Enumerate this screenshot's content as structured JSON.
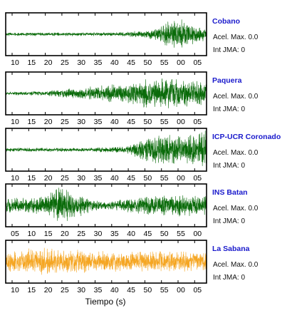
{
  "chart_data": {
    "type": "line",
    "xlabel": "Tiempo (s)",
    "panels": [
      {
        "station": "Cobano",
        "accel_label": "Acel. Max. 0.0",
        "jma_label": "Int JMA: 0",
        "color": "#0a6b0a",
        "ticks": [
          "10",
          "15",
          "20",
          "25",
          "30",
          "35",
          "40",
          "45",
          "50",
          "55",
          "00",
          "05"
        ],
        "amplitude_envelope": [
          [
            0,
            0.08
          ],
          [
            0.55,
            0.1
          ],
          [
            0.7,
            0.2
          ],
          [
            0.8,
            0.6
          ],
          [
            0.87,
            1.0
          ],
          [
            0.93,
            0.6
          ],
          [
            1,
            0.3
          ]
        ]
      },
      {
        "station": "Paquera",
        "accel_label": "Acel. Max. 0.0",
        "jma_label": "Int JMA: 0",
        "color": "#0a6b0a",
        "ticks": [
          "10",
          "15",
          "20",
          "25",
          "30",
          "35",
          "40",
          "45",
          "50",
          "55",
          "00",
          "05"
        ],
        "amplitude_envelope": [
          [
            0,
            0.08
          ],
          [
            0.2,
            0.12
          ],
          [
            0.35,
            0.3
          ],
          [
            0.5,
            0.45
          ],
          [
            0.65,
            0.6
          ],
          [
            0.75,
            0.95
          ],
          [
            0.85,
            0.8
          ],
          [
            1,
            0.55
          ]
        ]
      },
      {
        "station": "ICP-UCR Coronado",
        "accel_label": "Acel. Max. 0.0",
        "jma_label": "Int JMA: 0",
        "color": "#0a6b0a",
        "ticks": [
          "10",
          "15",
          "20",
          "25",
          "30",
          "35",
          "40",
          "45",
          "50",
          "55",
          "00",
          "05"
        ],
        "amplitude_envelope": [
          [
            0,
            0.1
          ],
          [
            0.4,
            0.1
          ],
          [
            0.6,
            0.2
          ],
          [
            0.68,
            0.55
          ],
          [
            0.8,
            0.85
          ],
          [
            0.88,
            0.7
          ],
          [
            0.95,
            0.95
          ],
          [
            1,
            1.0
          ]
        ]
      },
      {
        "station": "INS Batan",
        "accel_label": "Acel. Max. 0.0",
        "jma_label": "Int JMA: 0",
        "color": "#0a6b0a",
        "ticks": [
          "05",
          "10",
          "15",
          "20",
          "25",
          "30",
          "35",
          "40",
          "45",
          "50",
          "55",
          "00"
        ],
        "amplitude_envelope": [
          [
            0,
            0.35
          ],
          [
            0.2,
            0.5
          ],
          [
            0.27,
            1.0
          ],
          [
            0.32,
            0.8
          ],
          [
            0.4,
            0.45
          ],
          [
            0.5,
            0.2
          ],
          [
            0.6,
            0.35
          ],
          [
            0.8,
            0.6
          ],
          [
            1,
            0.5
          ]
        ]
      },
      {
        "station": "La Sabana",
        "accel_label": "Acel. Max. 0.0",
        "jma_label": "Int JMA: 0",
        "color": "#f5a623",
        "ticks": [
          "10",
          "15",
          "20",
          "25",
          "30",
          "35",
          "40",
          "45",
          "50",
          "55",
          "00",
          "05"
        ],
        "amplitude_envelope": [
          [
            0,
            0.5
          ],
          [
            0.15,
            0.75
          ],
          [
            0.3,
            0.65
          ],
          [
            0.5,
            0.55
          ],
          [
            0.7,
            0.55
          ],
          [
            1,
            0.55
          ]
        ]
      }
    ]
  }
}
